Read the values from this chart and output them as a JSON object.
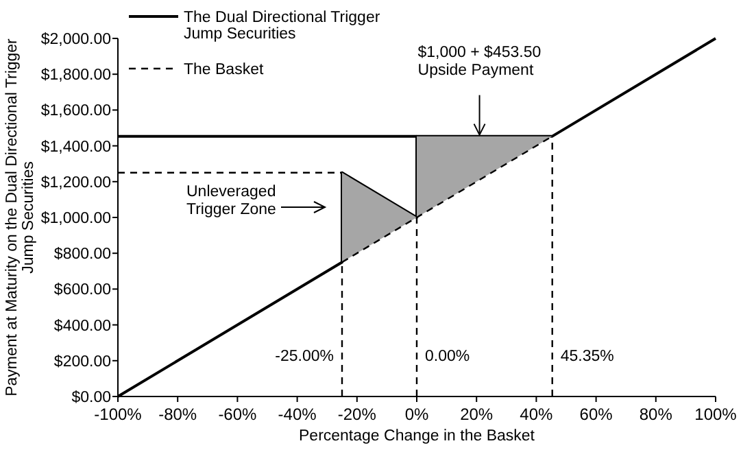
{
  "chart_data": {
    "type": "line",
    "xlabel": "Percentage Change in the Basket",
    "ylabel": "Payment at Maturity on the Dual Directional Trigger Jump Securities",
    "xlim": [
      -100,
      100
    ],
    "xticks": [
      {
        "value": -100,
        "label": "-100%"
      },
      {
        "value": -80,
        "label": "-80%"
      },
      {
        "value": -60,
        "label": "-60%"
      },
      {
        "value": -40,
        "label": "-40%"
      },
      {
        "value": -20,
        "label": "-20%"
      },
      {
        "value": 0,
        "label": "0%"
      },
      {
        "value": 20,
        "label": "20%"
      },
      {
        "value": 40,
        "label": "40%"
      },
      {
        "value": 60,
        "label": "60%"
      },
      {
        "value": 80,
        "label": "80%"
      },
      {
        "value": 100,
        "label": "100%"
      }
    ],
    "ylim": [
      0,
      2000
    ],
    "yticks": [
      {
        "value": 0,
        "label": "$0.00"
      },
      {
        "value": 200,
        "label": "$200.00"
      },
      {
        "value": 400,
        "label": "$400.00"
      },
      {
        "value": 600,
        "label": "$600.00"
      },
      {
        "value": 800,
        "label": "$800.00"
      },
      {
        "value": 1000,
        "label": "$1,000.00"
      },
      {
        "value": 1200,
        "label": "$1,200.00"
      },
      {
        "value": 1400,
        "label": "$1,400.00"
      },
      {
        "value": 1600,
        "label": "$1,600.00"
      },
      {
        "value": 1800,
        "label": "$1,800.00"
      },
      {
        "value": 2000,
        "label": "$2,000.00"
      }
    ],
    "legend": "top left",
    "grid": false,
    "marker": "none",
    "series": [
      {
        "name": "The Dual Directional Trigger Jump Securities",
        "color": "#000000",
        "line_style": "solid",
        "x": [
          -100,
          -25,
          -25,
          0,
          0,
          45.35,
          100
        ],
        "values": [
          0,
          750,
          1250,
          1000,
          1453.5,
          1453.5,
          2000
        ]
      },
      {
        "name": "The Basket",
        "color": "#000000",
        "line_style": "dashed",
        "x": [
          -25,
          0,
          0,
          45.35
        ],
        "values": [
          750,
          1000,
          1000,
          1453.5
        ],
        "lower": [
          750,
          1000,
          1000,
          1453.5
        ],
        "upper": [
          1250,
          1000,
          1453.5,
          1453.5
        ]
      },
      {
        "color": "#000000",
        "line_style": "solid",
        "x": [
          -100,
          0
        ],
        "values": [
          1453.5,
          1453.5
        ]
      },
      {
        "color": "#000000",
        "line_style": "dashed",
        "x": [
          -100,
          -25
        ],
        "values": [
          1250,
          1250
        ]
      },
      {
        "color": "#000000",
        "line_style": "dashed",
        "x": [
          -25,
          -25
        ],
        "values": [
          0,
          750
        ]
      },
      {
        "color": "#000000",
        "line_style": "dashed",
        "x": [
          0,
          0
        ],
        "values": [
          0,
          1000
        ]
      },
      {
        "color": "#000000",
        "line_style": "dashed",
        "x": [
          45.35,
          45.35
        ],
        "values": [
          0,
          1453.5
        ]
      }
    ],
    "annotations": [
      {
        "text": "$1,000 + $453.50 Upside Payment",
        "x": 21,
        "y": 1453.5
      },
      "Unleveraged Trigger Zone",
      {
        "text": "-25.00%",
        "x": -25,
        "y": 200
      },
      {
        "text": "0.00%",
        "x": 0,
        "y": 200
      },
      {
        "text": "45.35%",
        "x": 45.35,
        "y": 200
      }
    ]
  }
}
